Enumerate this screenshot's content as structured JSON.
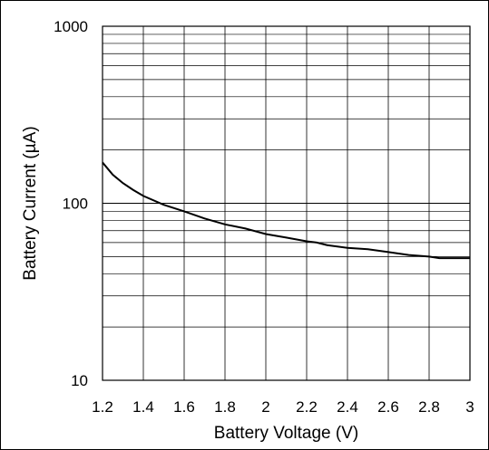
{
  "chart_data": {
    "type": "line",
    "title": "",
    "xlabel": "Battery Voltage (V)",
    "ylabel": "Battery Current (µA)",
    "x_scale": "linear",
    "y_scale": "log",
    "xlim": [
      1.2,
      3.0
    ],
    "ylim": [
      10,
      1000
    ],
    "grid": true,
    "legend": "none",
    "line_color": "#000000",
    "x_ticks": [
      1.2,
      1.4,
      1.6,
      1.8,
      2.0,
      2.2,
      2.4,
      2.6,
      2.8,
      3.0
    ],
    "x_tick_labels": [
      "1.2",
      "1.4",
      "1.6",
      "1.8",
      "2",
      "2.2",
      "2.4",
      "2.6",
      "2.8",
      "3"
    ],
    "y_ticks": [
      10,
      100,
      1000
    ],
    "y_tick_labels": [
      "10",
      "100",
      "1000"
    ],
    "series": [
      {
        "x": [
          1.2,
          1.25,
          1.3,
          1.35,
          1.4,
          1.5,
          1.6,
          1.7,
          1.8,
          1.9,
          2.0,
          2.1,
          2.2,
          2.25,
          2.3,
          2.4,
          2.5,
          2.6,
          2.7,
          2.8,
          2.85,
          2.9,
          3.0
        ],
        "y": [
          170,
          145,
          130,
          119,
          110,
          98,
          90,
          82,
          76,
          72,
          67,
          64,
          61,
          60,
          58,
          56,
          55,
          53,
          51,
          50,
          49,
          49,
          49
        ]
      }
    ]
  }
}
